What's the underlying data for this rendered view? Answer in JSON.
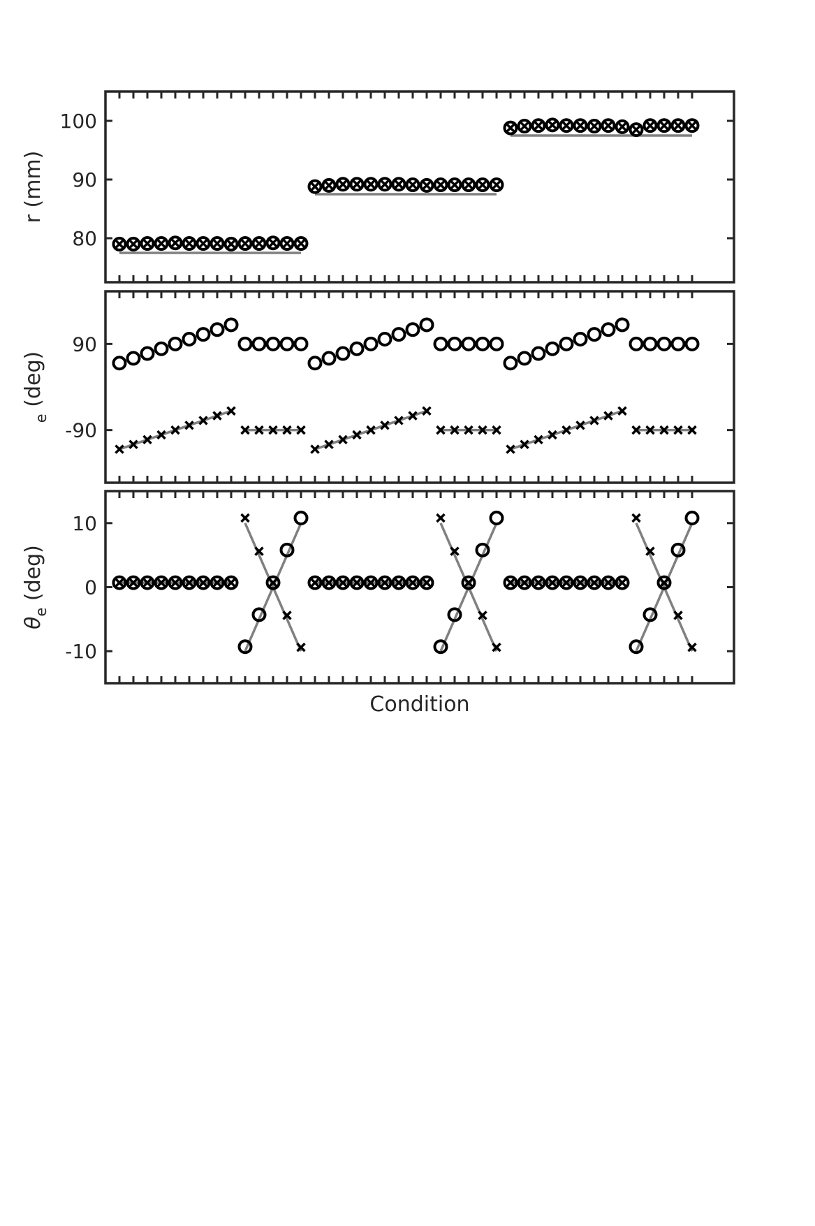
{
  "chart_data": [
    {
      "type": "scatter",
      "ylabel": "r (mm)",
      "yticks": [
        80,
        90,
        100
      ],
      "ylim": [
        72.5,
        105
      ],
      "xlim": [
        0,
        45
      ],
      "series": [
        {
          "marker": "circle",
          "x": [
            1,
            2,
            3,
            4,
            5,
            6,
            7,
            8,
            9,
            10,
            11,
            12,
            13,
            14,
            15,
            16,
            17,
            18,
            19,
            20,
            21,
            22,
            23,
            24,
            25,
            26,
            27,
            28,
            29,
            30,
            31,
            32,
            33,
            34,
            35,
            36,
            37,
            38,
            39,
            40,
            41,
            42
          ],
          "values": [
            79,
            79,
            79.1,
            79.1,
            79.2,
            79.1,
            79.1,
            79.1,
            79,
            79.1,
            79.1,
            79.2,
            79.1,
            79.1,
            88.8,
            89,
            89.2,
            89.2,
            89.2,
            89.2,
            89.2,
            89.1,
            89,
            89.1,
            89.1,
            89.1,
            89.1,
            89.1,
            98.8,
            99.1,
            99.2,
            99.3,
            99.2,
            99.2,
            99.1,
            99.2,
            99,
            98.5,
            99.2,
            99.2,
            99.2,
            99.2
          ]
        },
        {
          "marker": "x",
          "x": [
            1,
            2,
            3,
            4,
            5,
            6,
            7,
            8,
            9,
            10,
            11,
            12,
            13,
            14,
            15,
            16,
            17,
            18,
            19,
            20,
            21,
            22,
            23,
            24,
            25,
            26,
            27,
            28,
            29,
            30,
            31,
            32,
            33,
            34,
            35,
            36,
            37,
            38,
            39,
            40,
            41,
            42
          ],
          "values": [
            79,
            79,
            79.1,
            79.1,
            79.2,
            79.1,
            79.1,
            79.1,
            79,
            79.1,
            79.1,
            79.2,
            79.1,
            79.1,
            88.8,
            89,
            89.2,
            89.2,
            89.2,
            89.2,
            89.2,
            89.1,
            89,
            89.1,
            89.1,
            89.1,
            89.1,
            89.1,
            98.8,
            99.1,
            99.2,
            99.3,
            99.2,
            99.2,
            99.1,
            99.2,
            99,
            98.5,
            99.2,
            99.2,
            99.2,
            99.2
          ]
        }
      ],
      "reference_lines": [
        {
          "x": [
            1,
            14
          ],
          "y": [
            77.5,
            77.5
          ]
        },
        {
          "x": [
            15,
            28
          ],
          "y": [
            87.5,
            87.5
          ]
        },
        {
          "x": [
            29,
            42
          ],
          "y": [
            97.5,
            97.5
          ]
        }
      ]
    },
    {
      "type": "scatter",
      "ylabel_main": "e",
      "ylabel_sub": "(deg)",
      "yticks": [
        90,
        -90
      ],
      "ylim": [
        -200,
        200
      ],
      "xlim": [
        0,
        45
      ],
      "series": [
        {
          "marker": "circle",
          "x": [
            1,
            2,
            3,
            4,
            5,
            6,
            7,
            8,
            9,
            10,
            11,
            12,
            13,
            14,
            15,
            16,
            17,
            18,
            19,
            20,
            21,
            22,
            23,
            24,
            25,
            26,
            27,
            28,
            29,
            30,
            31,
            32,
            33,
            34,
            35,
            36,
            37,
            38,
            39,
            40,
            41,
            42
          ],
          "values": [
            50,
            60,
            70,
            80,
            90,
            100,
            110,
            120,
            130,
            90,
            90,
            90,
            90,
            90,
            50,
            60,
            70,
            80,
            90,
            100,
            110,
            120,
            130,
            90,
            90,
            90,
            90,
            90,
            50,
            60,
            70,
            80,
            90,
            100,
            110,
            120,
            130,
            90,
            90,
            90,
            90,
            90
          ]
        },
        {
          "marker": "x",
          "x": [
            1,
            2,
            3,
            4,
            5,
            6,
            7,
            8,
            9,
            10,
            11,
            12,
            13,
            14,
            15,
            16,
            17,
            18,
            19,
            20,
            21,
            22,
            23,
            24,
            25,
            26,
            27,
            28,
            29,
            30,
            31,
            32,
            33,
            34,
            35,
            36,
            37,
            38,
            39,
            40,
            41,
            42
          ],
          "values": [
            -130,
            -120,
            -110,
            -100,
            -90,
            -80,
            -70,
            -60,
            -50,
            -90,
            -90,
            -90,
            -90,
            -90,
            -130,
            -120,
            -110,
            -100,
            -90,
            -80,
            -70,
            -60,
            -50,
            -90,
            -90,
            -90,
            -90,
            -90,
            -130,
            -120,
            -110,
            -100,
            -90,
            -80,
            -70,
            -60,
            -50,
            -90,
            -90,
            -90,
            -90,
            -90
          ]
        }
      ],
      "reference_lines": [
        {
          "x": [
            1,
            9
          ],
          "y": [
            -130,
            -50
          ]
        },
        {
          "x": [
            10,
            14
          ],
          "y": [
            -90,
            -90
          ]
        },
        {
          "x": [
            15,
            23
          ],
          "y": [
            -130,
            -50
          ]
        },
        {
          "x": [
            24,
            28
          ],
          "y": [
            -90,
            -90
          ]
        },
        {
          "x": [
            29,
            37
          ],
          "y": [
            -130,
            -50
          ]
        },
        {
          "x": [
            38,
            42
          ],
          "y": [
            -90,
            -90
          ]
        }
      ]
    },
    {
      "type": "scatter",
      "ylabel_greek": "θ",
      "ylabel_main": "e",
      "ylabel_sub": "(deg)",
      "yticks": [
        10,
        0,
        -10
      ],
      "ylim": [
        -15,
        15
      ],
      "xlim": [
        0,
        45
      ],
      "xlabel": "Condition",
      "series": [
        {
          "marker": "circle",
          "x": [
            1,
            2,
            3,
            4,
            5,
            6,
            7,
            8,
            9,
            10,
            11,
            12,
            13,
            14,
            15,
            16,
            17,
            18,
            19,
            20,
            21,
            22,
            23,
            24,
            25,
            26,
            27,
            28,
            29,
            30,
            31,
            32,
            33,
            34,
            35,
            36,
            37,
            38,
            39,
            40,
            41,
            42
          ],
          "values": [
            0.7,
            0.7,
            0.7,
            0.7,
            0.7,
            0.7,
            0.7,
            0.7,
            0.7,
            -9.3,
            -4.3,
            0.7,
            5.8,
            10.8,
            0.7,
            0.7,
            0.7,
            0.7,
            0.7,
            0.7,
            0.7,
            0.7,
            0.7,
            -9.3,
            -4.3,
            0.7,
            5.8,
            10.8,
            0.7,
            0.7,
            0.7,
            0.7,
            0.7,
            0.7,
            0.7,
            0.7,
            0.7,
            -9.3,
            -4.3,
            0.7,
            5.8,
            10.8
          ]
        },
        {
          "marker": "x",
          "x": [
            1,
            2,
            3,
            4,
            5,
            6,
            7,
            8,
            9,
            10,
            11,
            12,
            13,
            14,
            15,
            16,
            17,
            18,
            19,
            20,
            21,
            22,
            23,
            24,
            25,
            26,
            27,
            28,
            29,
            30,
            31,
            32,
            33,
            34,
            35,
            36,
            37,
            38,
            39,
            40,
            41,
            42
          ],
          "values": [
            0.7,
            0.7,
            0.7,
            0.7,
            0.7,
            0.7,
            0.7,
            0.7,
            0.7,
            10.8,
            5.6,
            0.7,
            -4.4,
            -9.4,
            0.7,
            0.7,
            0.7,
            0.7,
            0.7,
            0.7,
            0.7,
            0.7,
            0.7,
            10.8,
            5.6,
            0.7,
            -4.4,
            -9.4,
            0.7,
            0.7,
            0.7,
            0.7,
            0.7,
            0.7,
            0.7,
            0.7,
            0.7,
            10.8,
            5.6,
            0.7,
            -4.4,
            -9.4
          ]
        }
      ],
      "reference_lines": [
        {
          "x": [
            1,
            9
          ],
          "y": [
            0.7,
            0.7
          ]
        },
        {
          "x": [
            10,
            14
          ],
          "y": [
            -10,
            10
          ]
        },
        {
          "x": [
            10,
            14
          ],
          "y": [
            10,
            -10
          ]
        },
        {
          "x": [
            15,
            23
          ],
          "y": [
            0.7,
            0.7
          ]
        },
        {
          "x": [
            24,
            28
          ],
          "y": [
            -10,
            10
          ]
        },
        {
          "x": [
            24,
            28
          ],
          "y": [
            10,
            -10
          ]
        },
        {
          "x": [
            29,
            37
          ],
          "y": [
            0.7,
            0.7
          ]
        },
        {
          "x": [
            38,
            42
          ],
          "y": [
            -10,
            10
          ]
        },
        {
          "x": [
            38,
            42
          ],
          "y": [
            10,
            -10
          ]
        }
      ]
    }
  ],
  "colors": {
    "axes": "#262626",
    "markers": "#000000",
    "reference_line": "#808080"
  }
}
